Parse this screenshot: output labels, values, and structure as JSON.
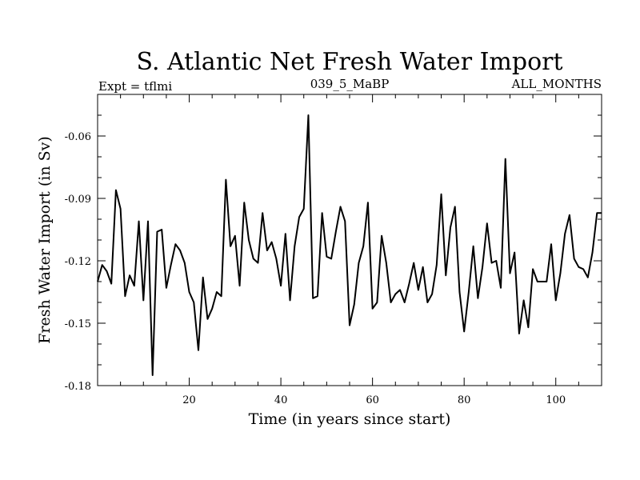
{
  "chart_data": {
    "type": "line",
    "title": "S. Atlantic Net Fresh Water Import",
    "subtitle_left": "Expt = tflmi",
    "subtitle_center": "039_5_MaBP",
    "subtitle_right": "ALL_MONTHS",
    "xlabel": "Time (in years since start)",
    "ylabel": "Fresh Water Import (in Sv)",
    "xlim": [
      0,
      110
    ],
    "ylim": [
      -0.18,
      -0.04
    ],
    "xticks": [
      20,
      40,
      60,
      80,
      100
    ],
    "yticks": [
      -0.18,
      -0.15,
      -0.12,
      -0.09,
      -0.06
    ],
    "xtick_labels": [
      "20",
      "40",
      "60",
      "80",
      "100"
    ],
    "ytick_labels": [
      "-0.18",
      "-0.15",
      "-0.12",
      "-0.09",
      "-0.06"
    ],
    "series": [
      {
        "name": "Fresh Water Import",
        "x": [
          0,
          1,
          2,
          3,
          4,
          5,
          6,
          7,
          8,
          9,
          10,
          11,
          12,
          13,
          14,
          15,
          16,
          17,
          18,
          19,
          20,
          21,
          22,
          23,
          24,
          25,
          26,
          27,
          28,
          29,
          30,
          31,
          32,
          33,
          34,
          35,
          36,
          37,
          38,
          39,
          40,
          41,
          42,
          43,
          44,
          45,
          46,
          47,
          48,
          49,
          50,
          51,
          52,
          53,
          54,
          55,
          56,
          57,
          58,
          59,
          60,
          61,
          62,
          63,
          64,
          65,
          66,
          67,
          68,
          69,
          70,
          71,
          72,
          73,
          74,
          75,
          76,
          77,
          78,
          79,
          80,
          81,
          82,
          83,
          84,
          85,
          86,
          87,
          88,
          89,
          90,
          91,
          92,
          93,
          94,
          95,
          96,
          97,
          98,
          99,
          100,
          101,
          102,
          103,
          104,
          105,
          106,
          107,
          108,
          109,
          110
        ],
        "y": [
          -0.13,
          -0.122,
          -0.125,
          -0.131,
          -0.086,
          -0.095,
          -0.137,
          -0.127,
          -0.132,
          -0.101,
          -0.139,
          -0.101,
          -0.175,
          -0.106,
          -0.105,
          -0.133,
          -0.122,
          -0.112,
          -0.115,
          -0.121,
          -0.135,
          -0.14,
          -0.163,
          -0.128,
          -0.148,
          -0.143,
          -0.135,
          -0.137,
          -0.081,
          -0.113,
          -0.108,
          -0.132,
          -0.092,
          -0.11,
          -0.119,
          -0.121,
          -0.097,
          -0.115,
          -0.111,
          -0.119,
          -0.132,
          -0.107,
          -0.139,
          -0.113,
          -0.099,
          -0.095,
          -0.05,
          -0.138,
          -0.137,
          -0.097,
          -0.118,
          -0.119,
          -0.106,
          -0.094,
          -0.101,
          -0.151,
          -0.141,
          -0.121,
          -0.113,
          -0.092,
          -0.143,
          -0.14,
          -0.108,
          -0.121,
          -0.14,
          -0.136,
          -0.134,
          -0.14,
          -0.131,
          -0.121,
          -0.134,
          -0.123,
          -0.14,
          -0.136,
          -0.122,
          -0.088,
          -0.127,
          -0.104,
          -0.094,
          -0.135,
          -0.154,
          -0.135,
          -0.113,
          -0.138,
          -0.123,
          -0.102,
          -0.121,
          -0.12,
          -0.133,
          -0.071,
          -0.126,
          -0.116,
          -0.155,
          -0.139,
          -0.152,
          -0.124,
          -0.13,
          -0.13,
          -0.13,
          -0.112,
          -0.139,
          -0.126,
          -0.107,
          -0.098,
          -0.119,
          -0.123,
          -0.124,
          -0.128,
          -0.116,
          -0.097,
          -0.097
        ]
      }
    ]
  }
}
